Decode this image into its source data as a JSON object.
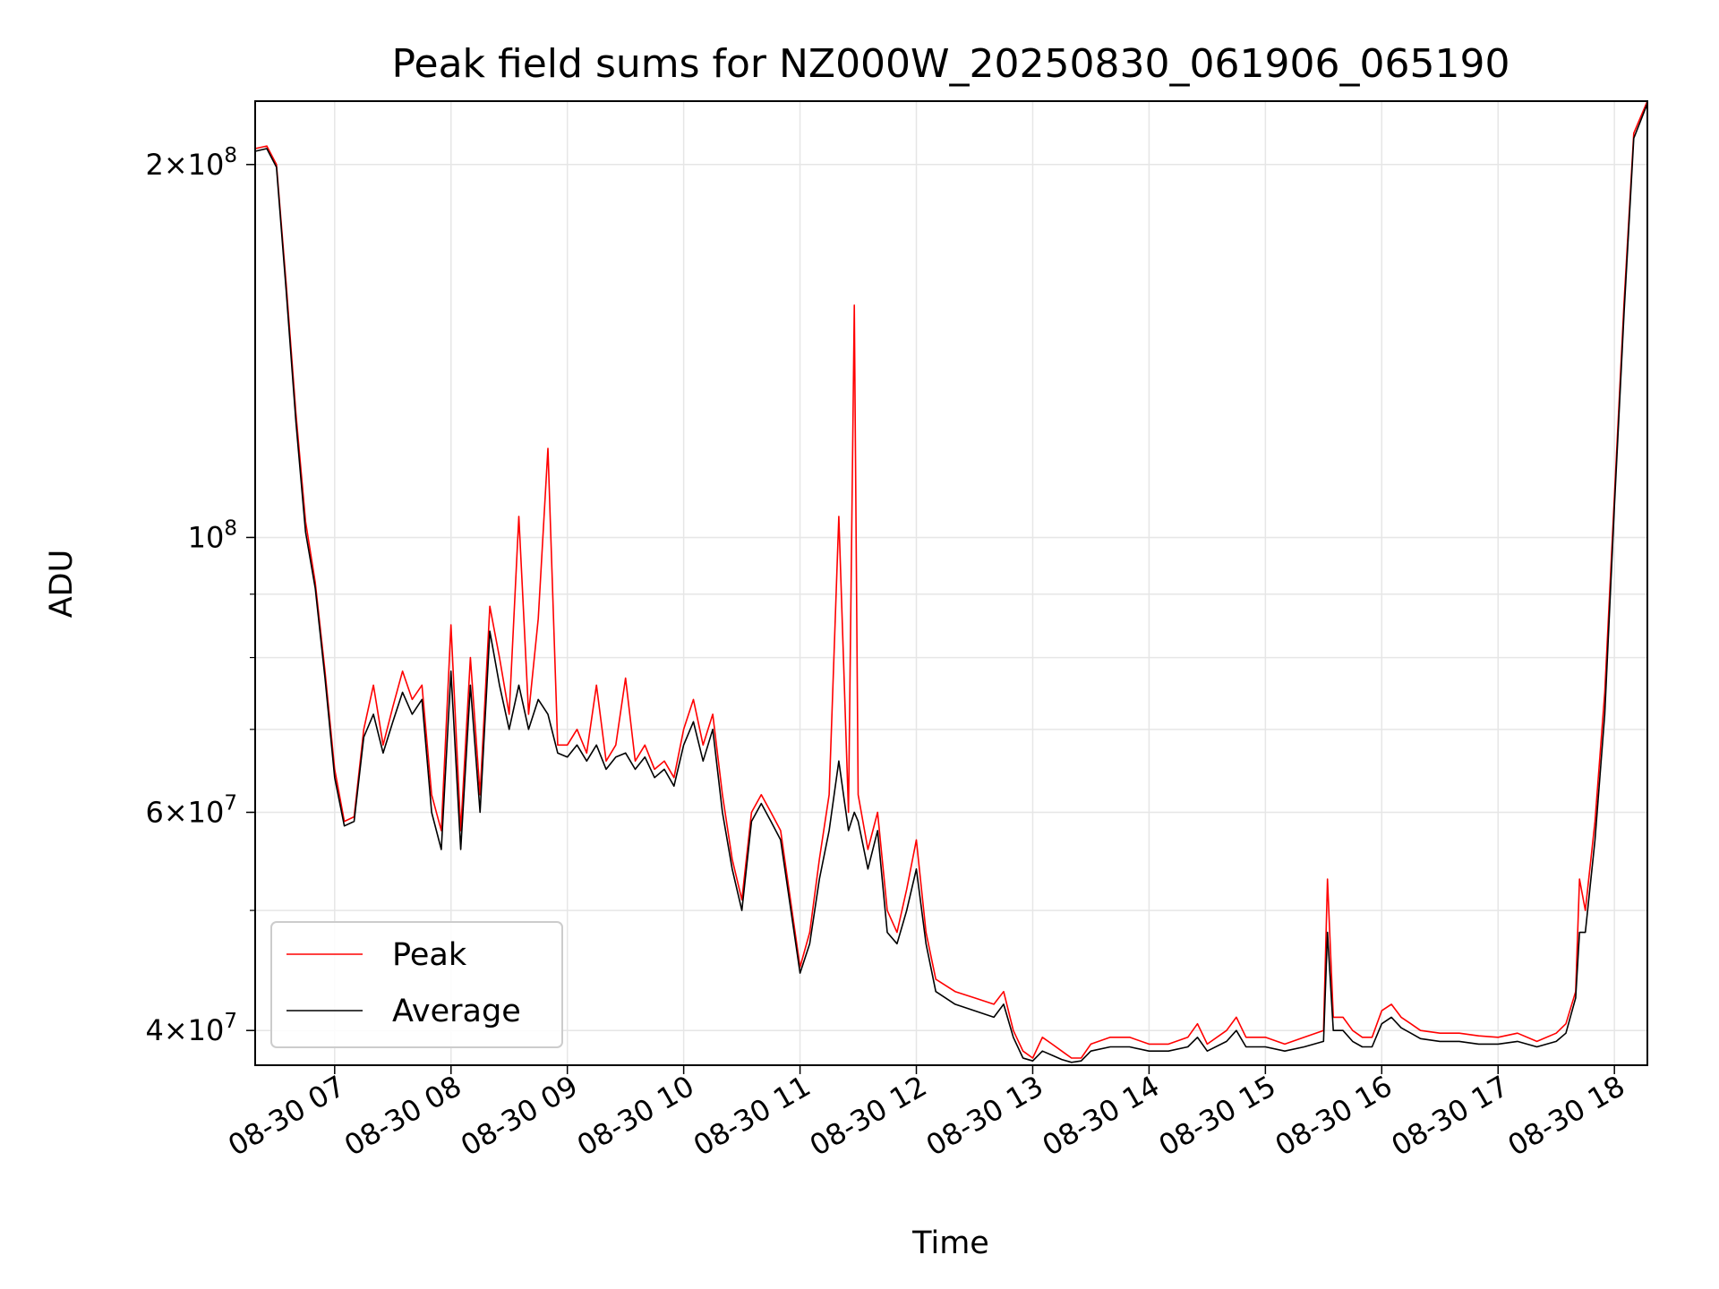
{
  "chart_data": {
    "type": "line",
    "title": "Peak field sums for NZ000W_20250830_061906_065190",
    "xlabel": "Time",
    "ylabel": "ADU",
    "y_scale": "log",
    "grid": true,
    "legend_position": "lower-left",
    "xlim": [
      "2025-08-30 06:19",
      "2025-08-30 18:17"
    ],
    "ylim": [
      37500000,
      225000000
    ],
    "x_ticks": [
      "08-30 07",
      "08-30 08",
      "08-30 09",
      "08-30 10",
      "08-30 11",
      "08-30 12",
      "08-30 13",
      "08-30 14",
      "08-30 15",
      "08-30 16",
      "08-30 17",
      "08-30 18"
    ],
    "y_ticks": [
      {
        "value": 200000000,
        "mantissa": "2",
        "exp": "8"
      },
      {
        "value": 100000000,
        "mantissa": "",
        "exp": "8"
      },
      {
        "value": 60000000,
        "mantissa": "6",
        "exp": "7"
      },
      {
        "value": 40000000,
        "mantissa": "4",
        "exp": "7"
      }
    ],
    "series": [
      {
        "name": "Peak",
        "color": "#ff0000",
        "points": [
          [
            "06:19",
            206000000
          ],
          [
            "06:25",
            207000000
          ],
          [
            "06:30",
            200000000
          ],
          [
            "06:35",
            160000000
          ],
          [
            "06:40",
            126000000
          ],
          [
            "06:45",
            103000000
          ],
          [
            "06:50",
            92000000
          ],
          [
            "06:55",
            78000000
          ],
          [
            "07:00",
            65000000
          ],
          [
            "07:05",
            59000000
          ],
          [
            "07:10",
            59500000
          ],
          [
            "07:15",
            70000000
          ],
          [
            "07:20",
            76000000
          ],
          [
            "07:25",
            68000000
          ],
          [
            "07:30",
            73000000
          ],
          [
            "07:35",
            78000000
          ],
          [
            "07:40",
            74000000
          ],
          [
            "07:45",
            76000000
          ],
          [
            "07:50",
            62000000
          ],
          [
            "07:55",
            58000000
          ],
          [
            "08:00",
            85000000
          ],
          [
            "08:05",
            58000000
          ],
          [
            "08:10",
            80000000
          ],
          [
            "08:15",
            62000000
          ],
          [
            "08:20",
            88000000
          ],
          [
            "08:25",
            80000000
          ],
          [
            "08:30",
            72000000
          ],
          [
            "08:35",
            104000000
          ],
          [
            "08:40",
            72000000
          ],
          [
            "08:45",
            86000000
          ],
          [
            "08:50",
            118000000
          ],
          [
            "08:55",
            68000000
          ],
          [
            "09:00",
            68000000
          ],
          [
            "09:05",
            70000000
          ],
          [
            "09:10",
            67000000
          ],
          [
            "09:15",
            76000000
          ],
          [
            "09:20",
            66000000
          ],
          [
            "09:25",
            68000000
          ],
          [
            "09:30",
            77000000
          ],
          [
            "09:35",
            66000000
          ],
          [
            "09:40",
            68000000
          ],
          [
            "09:45",
            65000000
          ],
          [
            "09:50",
            66000000
          ],
          [
            "09:55",
            64000000
          ],
          [
            "10:00",
            70000000
          ],
          [
            "10:05",
            74000000
          ],
          [
            "10:10",
            68000000
          ],
          [
            "10:15",
            72000000
          ],
          [
            "10:20",
            62000000
          ],
          [
            "10:25",
            55000000
          ],
          [
            "10:30",
            51000000
          ],
          [
            "10:35",
            60000000
          ],
          [
            "10:40",
            62000000
          ],
          [
            "10:45",
            60000000
          ],
          [
            "10:50",
            58000000
          ],
          [
            "11:00",
            45000000
          ],
          [
            "11:05",
            48000000
          ],
          [
            "11:10",
            55000000
          ],
          [
            "11:15",
            62000000
          ],
          [
            "11:20",
            104000000
          ],
          [
            "11:25",
            60000000
          ],
          [
            "11:28",
            154000000
          ],
          [
            "11:30",
            62000000
          ],
          [
            "11:35",
            56000000
          ],
          [
            "11:40",
            60000000
          ],
          [
            "11:45",
            50000000
          ],
          [
            "11:50",
            48000000
          ],
          [
            "11:55",
            52000000
          ],
          [
            "12:00",
            57000000
          ],
          [
            "12:05",
            48000000
          ],
          [
            "12:10",
            44000000
          ],
          [
            "12:20",
            43000000
          ],
          [
            "12:30",
            42500000
          ],
          [
            "12:40",
            42000000
          ],
          [
            "12:45",
            43000000
          ],
          [
            "12:50",
            40000000
          ],
          [
            "12:55",
            38500000
          ],
          [
            "13:00",
            38000000
          ],
          [
            "13:05",
            39500000
          ],
          [
            "13:10",
            39000000
          ],
          [
            "13:15",
            38500000
          ],
          [
            "13:20",
            38000000
          ],
          [
            "13:25",
            38000000
          ],
          [
            "13:30",
            39000000
          ],
          [
            "13:40",
            39500000
          ],
          [
            "13:50",
            39500000
          ],
          [
            "14:00",
            39000000
          ],
          [
            "14:10",
            39000000
          ],
          [
            "14:20",
            39500000
          ],
          [
            "14:25",
            40500000
          ],
          [
            "14:30",
            39000000
          ],
          [
            "14:40",
            40000000
          ],
          [
            "14:45",
            41000000
          ],
          [
            "14:50",
            39500000
          ],
          [
            "15:00",
            39500000
          ],
          [
            "15:10",
            39000000
          ],
          [
            "15:20",
            39500000
          ],
          [
            "15:30",
            40000000
          ],
          [
            "15:32",
            53000000
          ],
          [
            "15:35",
            41000000
          ],
          [
            "15:40",
            41000000
          ],
          [
            "15:45",
            40000000
          ],
          [
            "15:50",
            39500000
          ],
          [
            "15:55",
            39500000
          ],
          [
            "16:00",
            41500000
          ],
          [
            "16:05",
            42000000
          ],
          [
            "16:10",
            41000000
          ],
          [
            "16:15",
            40500000
          ],
          [
            "16:20",
            40000000
          ],
          [
            "16:30",
            39800000
          ],
          [
            "16:40",
            39800000
          ],
          [
            "16:50",
            39600000
          ],
          [
            "17:00",
            39500000
          ],
          [
            "17:10",
            39800000
          ],
          [
            "17:20",
            39200000
          ],
          [
            "17:30",
            39800000
          ],
          [
            "17:35",
            40500000
          ],
          [
            "17:40",
            43000000
          ],
          [
            "17:42",
            53000000
          ],
          [
            "17:45",
            50000000
          ],
          [
            "17:50",
            59000000
          ],
          [
            "17:55",
            75000000
          ],
          [
            "18:00",
            108000000
          ],
          [
            "18:05",
            155000000
          ],
          [
            "18:10",
            212000000
          ],
          [
            "18:17",
            225000000
          ]
        ]
      },
      {
        "name": "Average",
        "color": "#000000",
        "points": [
          [
            "06:19",
            205000000
          ],
          [
            "06:25",
            206000000
          ],
          [
            "06:30",
            199000000
          ],
          [
            "06:35",
            158000000
          ],
          [
            "06:40",
            124000000
          ],
          [
            "06:45",
            101000000
          ],
          [
            "06:50",
            91000000
          ],
          [
            "06:55",
            77000000
          ],
          [
            "07:00",
            64000000
          ],
          [
            "07:05",
            58500000
          ],
          [
            "07:10",
            59000000
          ],
          [
            "07:15",
            69000000
          ],
          [
            "07:20",
            72000000
          ],
          [
            "07:25",
            67000000
          ],
          [
            "07:30",
            71000000
          ],
          [
            "07:35",
            75000000
          ],
          [
            "07:40",
            72000000
          ],
          [
            "07:45",
            74000000
          ],
          [
            "07:50",
            60000000
          ],
          [
            "07:55",
            56000000
          ],
          [
            "08:00",
            78000000
          ],
          [
            "08:05",
            56000000
          ],
          [
            "08:10",
            76000000
          ],
          [
            "08:15",
            60000000
          ],
          [
            "08:20",
            84000000
          ],
          [
            "08:25",
            76000000
          ],
          [
            "08:30",
            70000000
          ],
          [
            "08:35",
            76000000
          ],
          [
            "08:40",
            70000000
          ],
          [
            "08:45",
            74000000
          ],
          [
            "08:50",
            72000000
          ],
          [
            "08:55",
            67000000
          ],
          [
            "09:00",
            66500000
          ],
          [
            "09:05",
            68000000
          ],
          [
            "09:10",
            66000000
          ],
          [
            "09:15",
            68000000
          ],
          [
            "09:20",
            65000000
          ],
          [
            "09:25",
            66500000
          ],
          [
            "09:30",
            67000000
          ],
          [
            "09:35",
            65000000
          ],
          [
            "09:40",
            66500000
          ],
          [
            "09:45",
            64000000
          ],
          [
            "09:50",
            65000000
          ],
          [
            "09:55",
            63000000
          ],
          [
            "10:00",
            68000000
          ],
          [
            "10:05",
            71000000
          ],
          [
            "10:10",
            66000000
          ],
          [
            "10:15",
            70000000
          ],
          [
            "10:20",
            60000000
          ],
          [
            "10:25",
            54000000
          ],
          [
            "10:30",
            50000000
          ],
          [
            "10:35",
            59000000
          ],
          [
            "10:40",
            61000000
          ],
          [
            "10:45",
            59000000
          ],
          [
            "10:50",
            57000000
          ],
          [
            "11:00",
            44500000
          ],
          [
            "11:05",
            47000000
          ],
          [
            "11:10",
            53000000
          ],
          [
            "11:15",
            58000000
          ],
          [
            "11:20",
            66000000
          ],
          [
            "11:25",
            58000000
          ],
          [
            "11:28",
            60000000
          ],
          [
            "11:30",
            59000000
          ],
          [
            "11:35",
            54000000
          ],
          [
            "11:40",
            58000000
          ],
          [
            "11:45",
            48000000
          ],
          [
            "11:50",
            47000000
          ],
          [
            "11:55",
            50000000
          ],
          [
            "12:00",
            54000000
          ],
          [
            "12:05",
            47000000
          ],
          [
            "12:10",
            43000000
          ],
          [
            "12:20",
            42000000
          ],
          [
            "12:30",
            41500000
          ],
          [
            "12:40",
            41000000
          ],
          [
            "12:45",
            42000000
          ],
          [
            "12:50",
            39500000
          ],
          [
            "12:55",
            38000000
          ],
          [
            "13:00",
            37800000
          ],
          [
            "13:05",
            38500000
          ],
          [
            "13:10",
            38200000
          ],
          [
            "13:15",
            37900000
          ],
          [
            "13:20",
            37700000
          ],
          [
            "13:25",
            37800000
          ],
          [
            "13:30",
            38500000
          ],
          [
            "13:40",
            38800000
          ],
          [
            "13:50",
            38800000
          ],
          [
            "14:00",
            38500000
          ],
          [
            "14:10",
            38500000
          ],
          [
            "14:20",
            38800000
          ],
          [
            "14:25",
            39500000
          ],
          [
            "14:30",
            38500000
          ],
          [
            "14:40",
            39200000
          ],
          [
            "14:45",
            40000000
          ],
          [
            "14:50",
            38800000
          ],
          [
            "15:00",
            38800000
          ],
          [
            "15:10",
            38500000
          ],
          [
            "15:20",
            38800000
          ],
          [
            "15:30",
            39200000
          ],
          [
            "15:32",
            48000000
          ],
          [
            "15:35",
            40000000
          ],
          [
            "15:40",
            40000000
          ],
          [
            "15:45",
            39200000
          ],
          [
            "15:50",
            38800000
          ],
          [
            "15:55",
            38800000
          ],
          [
            "16:00",
            40500000
          ],
          [
            "16:05",
            41000000
          ],
          [
            "16:10",
            40200000
          ],
          [
            "16:15",
            39800000
          ],
          [
            "16:20",
            39400000
          ],
          [
            "16:30",
            39200000
          ],
          [
            "16:40",
            39200000
          ],
          [
            "16:50",
            39000000
          ],
          [
            "17:00",
            39000000
          ],
          [
            "17:10",
            39200000
          ],
          [
            "17:20",
            38800000
          ],
          [
            "17:30",
            39200000
          ],
          [
            "17:35",
            39800000
          ],
          [
            "17:40",
            42500000
          ],
          [
            "17:42",
            48000000
          ],
          [
            "17:45",
            48000000
          ],
          [
            "17:50",
            57000000
          ],
          [
            "17:55",
            72000000
          ],
          [
            "18:00",
            106000000
          ],
          [
            "18:05",
            152000000
          ],
          [
            "18:10",
            210000000
          ],
          [
            "18:17",
            224000000
          ]
        ]
      }
    ]
  }
}
